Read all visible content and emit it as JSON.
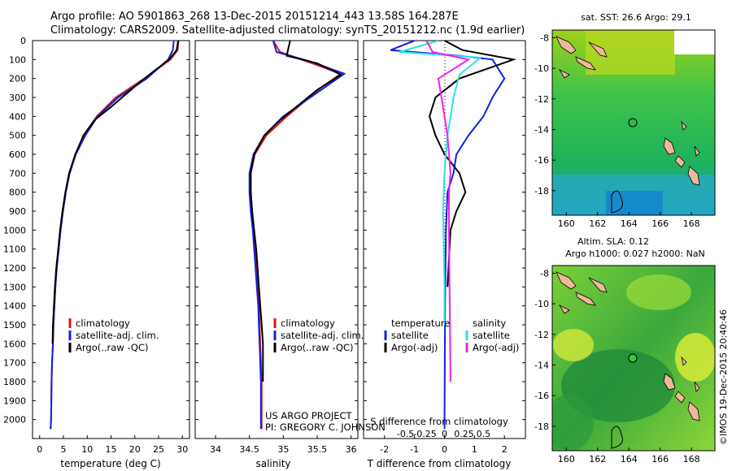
{
  "title": {
    "line1": "Argo profile: AO 5901863_268 13-Dec-2015 20151214_443 13.58S 164.287E",
    "line2": "Climatology: CARS2009. Satellite-adjusted climatology: synTS_20151212.nc (1.9d earlier)"
  },
  "colors": {
    "climatology": "#e01010",
    "satellite": "#1020e0",
    "argo": "#000000",
    "sat_salinity": "#30e0e8",
    "argo_adj_salinity": "#f020f0"
  },
  "depth_axis": {
    "ticks": [
      "0",
      "100",
      "200",
      "300",
      "400",
      "500",
      "600",
      "700",
      "800",
      "900",
      "1000",
      "1100",
      "1200",
      "1300",
      "1400",
      "1500",
      "1600",
      "1700",
      "1800",
      "1900",
      "2000"
    ],
    "ylim": [
      0,
      2100
    ]
  },
  "chart_data": [
    {
      "type": "line",
      "id": "temperature",
      "xlabel": "temperature (deg C)",
      "xlim": [
        -1.5,
        31.5
      ],
      "xticks": [
        "0",
        "5",
        "10",
        "15",
        "20",
        "25",
        "30"
      ],
      "legend": [
        "climatology",
        "satellite-adj. clim.",
        "Argo(..raw -QC)"
      ],
      "series": [
        {
          "name": "climatology",
          "color": "#e01010",
          "x": [
            29.2,
            29.0,
            27.5,
            22.0,
            16.0,
            12.0,
            9.5,
            7.6,
            6.3,
            5.5,
            4.9,
            4.4,
            4.0,
            3.6,
            3.3,
            3.1,
            2.9,
            2.8,
            2.6,
            2.5,
            2.4,
            2.3
          ],
          "depth": [
            0,
            50,
            100,
            200,
            300,
            400,
            500,
            600,
            700,
            800,
            900,
            1000,
            1100,
            1200,
            1300,
            1400,
            1500,
            1600,
            1700,
            1800,
            2000,
            2050
          ]
        },
        {
          "name": "satellite-adj. clim.",
          "color": "#1020e0",
          "x": [
            28.2,
            28.0,
            27.0,
            22.5,
            16.5,
            12.2,
            9.6,
            7.6,
            6.3,
            5.5,
            4.9,
            4.4,
            4.0,
            3.6,
            3.3,
            3.1,
            2.9,
            2.8,
            2.6,
            2.5,
            2.4,
            2.3
          ],
          "depth": [
            0,
            50,
            100,
            200,
            300,
            400,
            500,
            600,
            700,
            800,
            900,
            1000,
            1100,
            1200,
            1300,
            1400,
            1500,
            1600,
            1700,
            1800,
            2000,
            2050
          ]
        },
        {
          "name": "Argo(..raw -QC)",
          "color": "#000000",
          "x": [
            29.1,
            28.8,
            27.2,
            21.5,
            15.0,
            11.5,
            9.2,
            7.5,
            6.2,
            5.4,
            4.8,
            4.3,
            3.9,
            3.5,
            3.2,
            3.0,
            2.8,
            2.7
          ],
          "depth": [
            0,
            50,
            100,
            210,
            350,
            420,
            500,
            600,
            700,
            800,
            900,
            1000,
            1100,
            1200,
            1300,
            1400,
            1500,
            1600
          ]
        }
      ]
    },
    {
      "type": "line",
      "id": "salinity",
      "xlabel": "salinity",
      "xlim": [
        33.7,
        36.1
      ],
      "xticks": [
        "34",
        "34.5",
        "35",
        "35.5",
        "36"
      ],
      "legend": [
        "climatology",
        "satellite-adj. clim.",
        "Argo(..raw -QC)"
      ],
      "series": [
        {
          "name": "climatology",
          "color": "#e01010",
          "x": [
            34.85,
            34.95,
            35.35,
            35.85,
            35.55,
            35.05,
            34.75,
            34.58,
            34.52,
            34.52,
            34.54,
            34.56,
            34.58,
            34.6,
            34.62,
            34.64,
            34.65,
            34.66,
            34.67,
            34.68,
            34.68
          ],
          "depth": [
            0,
            60,
            110,
            175,
            250,
            400,
            500,
            600,
            700,
            800,
            900,
            1000,
            1100,
            1200,
            1300,
            1400,
            1500,
            1600,
            1700,
            1800,
            2050
          ]
        },
        {
          "name": "satellite-adj. clim.",
          "color": "#1020e0",
          "x": [
            34.85,
            34.9,
            35.4,
            35.9,
            35.6,
            35.0,
            34.72,
            34.56,
            34.5,
            34.5,
            34.52,
            34.55,
            34.57,
            34.59,
            34.61,
            34.63,
            34.64,
            34.65,
            34.66,
            34.67,
            34.67
          ],
          "depth": [
            0,
            60,
            110,
            175,
            250,
            400,
            500,
            600,
            700,
            800,
            900,
            1000,
            1100,
            1200,
            1300,
            1400,
            1500,
            1600,
            1700,
            1800,
            2050
          ]
        },
        {
          "name": "Argo(..raw -QC)",
          "color": "#000000",
          "x": [
            35.1,
            35.05,
            35.5,
            35.85,
            35.5,
            34.95,
            34.72,
            34.57,
            34.52,
            34.52,
            34.54,
            34.57,
            34.6,
            34.62,
            34.64,
            34.66,
            34.68,
            34.7,
            34.7
          ],
          "depth": [
            0,
            80,
            120,
            180,
            260,
            420,
            500,
            600,
            700,
            800,
            900,
            1000,
            1100,
            1200,
            1300,
            1400,
            1500,
            1600,
            1800
          ]
        }
      ]
    },
    {
      "type": "line",
      "id": "differences",
      "xlabel_t": "T difference from climatology",
      "xlabel_s": "S difference from climatology",
      "xlim": [
        -2.7,
        2.7
      ],
      "xticks_t": [
        "-2",
        "-1",
        "0",
        "1",
        "2"
      ],
      "xticks_s": [
        "-0.5",
        "-0.25",
        "0",
        "0.25",
        "0.5"
      ],
      "legend_t_title": "temperature",
      "legend_s_title": "salinity",
      "legend_t": [
        "satellite",
        "Argo(-adj)"
      ],
      "legend_s": [
        "satellite",
        "Argo(-adj)"
      ],
      "series": [
        {
          "name": "T satellite",
          "color": "#1020e0",
          "x": [
            -1.0,
            -1.8,
            0.5,
            1.6,
            2.0,
            1.6,
            1.3,
            0.8,
            0.4,
            0.3,
            0.1,
            0.05,
            0.02,
            0.0
          ],
          "depth": [
            0,
            50,
            80,
            100,
            200,
            300,
            400,
            500,
            600,
            700,
            800,
            1000,
            1400,
            2050
          ]
        },
        {
          "name": "T Argo(-adj)",
          "color": "#000000",
          "x": [
            0.0,
            0.6,
            2.3,
            0.5,
            -0.3,
            -0.5,
            -0.3,
            0.0,
            0.5,
            0.7,
            0.4,
            0.2,
            0.1
          ],
          "depth": [
            0,
            50,
            100,
            200,
            300,
            400,
            500,
            600,
            700,
            800,
            900,
            1000,
            1300
          ]
        },
        {
          "name": "S satellite",
          "color": "#30e0e8",
          "x": [
            -0.2,
            -1.5,
            1.2,
            0.5,
            0.3,
            0.1,
            0.0,
            -0.05,
            0.0,
            0.0
          ],
          "depth": [
            0,
            60,
            90,
            180,
            300,
            500,
            700,
            900,
            1300,
            1500
          ]
        },
        {
          "name": "S Argo(-adj)",
          "color": "#f020f0",
          "x": [
            -0.6,
            -0.4,
            0.8,
            -0.2,
            0.0,
            0.1,
            0.2,
            0.15,
            0.15,
            0.2
          ],
          "depth": [
            0,
            60,
            100,
            200,
            400,
            500,
            700,
            800,
            1000,
            1800
          ]
        }
      ]
    }
  ],
  "credit": {
    "line1": "US ARGO PROJECT",
    "line2": "PI: GREGORY C. JOHNSON"
  },
  "maps": [
    {
      "id": "sst",
      "title": "sat. SST: 26.6 Argo: 29.1",
      "xticks": [
        "160",
        "162",
        "164",
        "166",
        "168"
      ],
      "yticks": [
        "-8",
        "-10",
        "-12",
        "-14",
        "-16",
        "-18"
      ]
    },
    {
      "id": "sla",
      "title_line1": "Altim. SLA: 0.12",
      "title_line2": "Argo h1000: 0.027 h2000: NaN",
      "xticks": [
        "160",
        "162",
        "164",
        "166",
        "168"
      ],
      "yticks": [
        "-8",
        "-10",
        "-12",
        "-14",
        "-16",
        "-18"
      ]
    }
  ],
  "side_credit": "©IMOS 19-Dec-2015 20:40:46"
}
